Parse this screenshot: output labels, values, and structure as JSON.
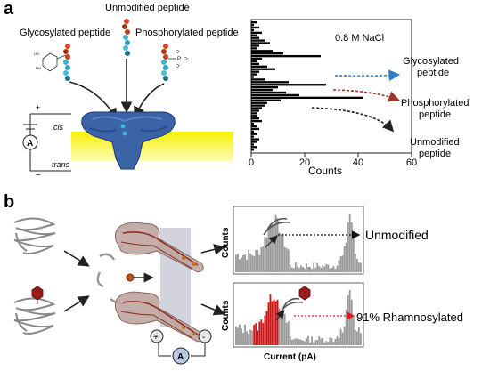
{
  "panel_a": {
    "letter": "a",
    "labels": {
      "unmodified": "Unmodified peptide",
      "glycosylated": "Glycosylated peptide",
      "phosphorylated": "Phosphorylated peptide",
      "cis": "cis",
      "trans": "trans",
      "ammeter": "A"
    },
    "chart": {
      "annotation": "0.8 M NaCl",
      "xlabel": "Counts",
      "xticks": [
        "0",
        "20",
        "40",
        "60"
      ]
    },
    "outcomes": {
      "glycosylated": [
        "Glycosylated",
        "peptide"
      ],
      "phosphorylated": [
        "Phosphorylated",
        "peptide"
      ],
      "unmodified": [
        "Unmodified",
        "peptide"
      ]
    },
    "colors": {
      "glyco": "#2f7fc6",
      "phospho": "#a0352a",
      "unmod": "#222222"
    }
  },
  "panel_b": {
    "letter": "b",
    "top_trace": {
      "ylabel": "Counts",
      "result": "Unmodified"
    },
    "bottom_trace": {
      "ylabel": "Counts",
      "result": "91% Rhamnosylated",
      "result_color": "#d42020"
    },
    "xlabel": "Current (pA)",
    "ammeter": "A",
    "plus": "+",
    "minus": "-"
  },
  "chart_data": {
    "type": "bar",
    "orientation": "horizontal",
    "annotation": "0.8 M NaCl",
    "xlabel": "Counts",
    "xlim": [
      0,
      60
    ],
    "xticks": [
      0,
      20,
      40,
      60
    ],
    "values": [
      2,
      1,
      3,
      1,
      4,
      2,
      3,
      5,
      7,
      3,
      2,
      8,
      12,
      26,
      4,
      2,
      3,
      6,
      9,
      3,
      2,
      1,
      5,
      14,
      28,
      10,
      8,
      13,
      18,
      42,
      11,
      6,
      5,
      4,
      3,
      2,
      2,
      3,
      4,
      1,
      2,
      3,
      1,
      2,
      1,
      3,
      2,
      1,
      2,
      1
    ]
  }
}
